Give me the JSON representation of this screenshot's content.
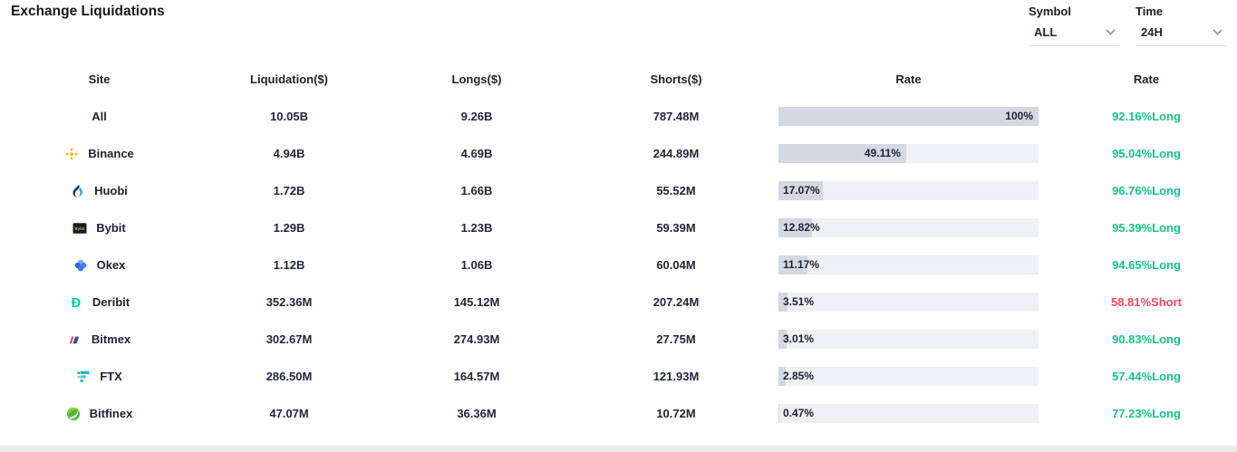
{
  "page": {
    "title": "Exchange Liquidations",
    "colors": {
      "long": "#14c584",
      "short": "#f5485d",
      "bar_fill": "#d3d8e1",
      "bar_track": "#eef0f4"
    }
  },
  "filters": {
    "symbol": {
      "label": "Symbol",
      "value": "ALL"
    },
    "time": {
      "label": "Time",
      "value": "24H"
    }
  },
  "table": {
    "columns": [
      "Site",
      "Liquidation($)",
      "Longs($)",
      "Shorts($)",
      "Rate",
      "Rate"
    ],
    "rows": [
      {
        "site": "All",
        "icon": "",
        "liquidation": "10.05B",
        "longs": "9.26B",
        "shorts": "787.48M",
        "rate_pct": 100,
        "rate_label": "100%",
        "rate2": "92.16%Long",
        "side": "long"
      },
      {
        "site": "Binance",
        "icon": "binance-icon",
        "liquidation": "4.94B",
        "longs": "4.69B",
        "shorts": "244.89M",
        "rate_pct": 49.11,
        "rate_label": "49.11%",
        "rate2": "95.04%Long",
        "side": "long"
      },
      {
        "site": "Huobi",
        "icon": "huobi-icon",
        "liquidation": "1.72B",
        "longs": "1.66B",
        "shorts": "55.52M",
        "rate_pct": 17.07,
        "rate_label": "17.07%",
        "rate2": "96.76%Long",
        "side": "long"
      },
      {
        "site": "Bybit",
        "icon": "bybit-icon",
        "liquidation": "1.29B",
        "longs": "1.23B",
        "shorts": "59.39M",
        "rate_pct": 12.82,
        "rate_label": "12.82%",
        "rate2": "95.39%Long",
        "side": "long"
      },
      {
        "site": "Okex",
        "icon": "okex-icon",
        "liquidation": "1.12B",
        "longs": "1.06B",
        "shorts": "60.04M",
        "rate_pct": 11.17,
        "rate_label": "11.17%",
        "rate2": "94.65%Long",
        "side": "long"
      },
      {
        "site": "Deribit",
        "icon": "deribit-icon",
        "liquidation": "352.36M",
        "longs": "145.12M",
        "shorts": "207.24M",
        "rate_pct": 3.51,
        "rate_label": "3.51%",
        "rate2": "58.81%Short",
        "side": "short"
      },
      {
        "site": "Bitmex",
        "icon": "bitmex-icon",
        "liquidation": "302.67M",
        "longs": "274.93M",
        "shorts": "27.75M",
        "rate_pct": 3.01,
        "rate_label": "3.01%",
        "rate2": "90.83%Long",
        "side": "long"
      },
      {
        "site": "FTX",
        "icon": "ftx-icon",
        "liquidation": "286.50M",
        "longs": "164.57M",
        "shorts": "121.93M",
        "rate_pct": 2.85,
        "rate_label": "2.85%",
        "rate2": "57.44%Long",
        "side": "long"
      },
      {
        "site": "Bitfinex",
        "icon": "bitfinex-icon",
        "liquidation": "47.07M",
        "longs": "36.36M",
        "shorts": "10.72M",
        "rate_pct": 0.47,
        "rate_label": "0.47%",
        "rate2": "77.23%Long",
        "side": "long"
      }
    ]
  }
}
